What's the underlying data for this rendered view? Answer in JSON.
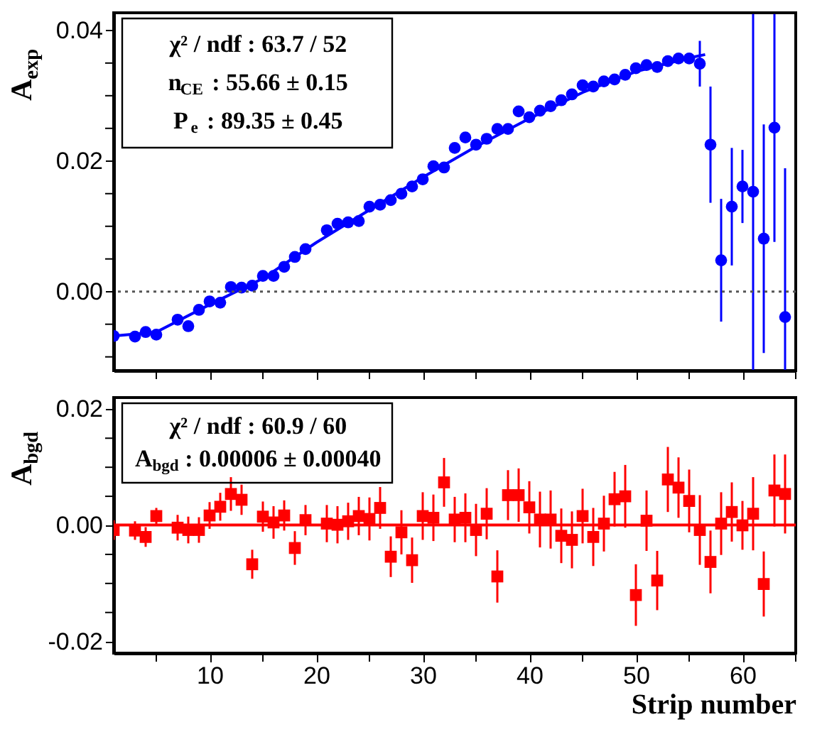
{
  "chart_data": [
    {
      "type": "scatter",
      "ylabel": "A$_{exp}$",
      "grid": false,
      "tick_labels": "y",
      "x": [
        1,
        3,
        4,
        5,
        7,
        8,
        9,
        10,
        11,
        12,
        13,
        14,
        15,
        16,
        17,
        18,
        19,
        21,
        22,
        23,
        24,
        25,
        26,
        27,
        28,
        29,
        30,
        31,
        32,
        33,
        34,
        35,
        36,
        37,
        38,
        39,
        40,
        41,
        42,
        43,
        44,
        45,
        46,
        47,
        48,
        49,
        50,
        51,
        52,
        53,
        54,
        55,
        56,
        57,
        58,
        59,
        60,
        61,
        62,
        63,
        64
      ],
      "series": [
        {
          "type": "scatter",
          "marker": "circle",
          "color": "#0000ff",
          "values": [
            -0.0068,
            -0.0069,
            -0.0062,
            -0.0066,
            -0.0043,
            -0.0053,
            -0.0028,
            -0.0015,
            -0.0017,
            0.0007,
            0.0006,
            0.0009,
            0.0024,
            0.0024,
            0.0038,
            0.0053,
            0.0065,
            0.0094,
            0.0104,
            0.0106,
            0.0108,
            0.013,
            0.0133,
            0.014,
            0.015,
            0.0161,
            0.0172,
            0.0192,
            0.019,
            0.022,
            0.0236,
            0.0225,
            0.0234,
            0.0249,
            0.0249,
            0.0276,
            0.0267,
            0.0277,
            0.0284,
            0.0293,
            0.0302,
            0.0316,
            0.0314,
            0.0322,
            0.0325,
            0.0332,
            0.0342,
            0.0347,
            0.0344,
            0.0353,
            0.0357,
            0.0357,
            0.0349,
            0.0225,
            0.0048,
            0.013,
            0.0161,
            0.0153,
            0.0081,
            0.0251,
            -0.0039
          ],
          "errors": [
            0.0005,
            0.0005,
            0.0005,
            0.0005,
            0.0005,
            0.0005,
            0.0005,
            0.0005,
            0.0005,
            0.0005,
            0.0005,
            0.0005,
            0.0005,
            0.0005,
            0.0005,
            0.0005,
            0.0005,
            0.0005,
            0.0005,
            0.0005,
            0.0005,
            0.0005,
            0.0005,
            0.0005,
            0.0005,
            0.0005,
            0.0005,
            0.0005,
            0.0005,
            0.0005,
            0.0005,
            0.0005,
            0.0005,
            0.0005,
            0.0005,
            0.0005,
            0.0005,
            0.0005,
            0.0005,
            0.0005,
            0.0005,
            0.0005,
            0.0005,
            0.0005,
            0.0005,
            0.0005,
            0.0005,
            0.0005,
            0.0005,
            0.0005,
            0.0005,
            0.0005,
            0.0035,
            0.0089,
            0.0094,
            0.009,
            0.0056,
            [
              -0.012,
              0.0425
            ],
            0.0175,
            [
              0.0076,
              0.0425
            ],
            [
              -0.012,
              0.0189
            ]
          ]
        },
        {
          "type": "line",
          "marker": "none",
          "line_style": "solid",
          "color": "#0000ff",
          "x": [
            1,
            5,
            10,
            15,
            20,
            25,
            30,
            35,
            40,
            45,
            50,
            55,
            56.5
          ],
          "values": [
            -0.0068,
            -0.0062,
            -0.002,
            0.002,
            0.0075,
            0.0125,
            0.0175,
            0.0222,
            0.0265,
            0.0305,
            0.0337,
            0.0358,
            0.0363
          ]
        }
      ],
      "xlim": [
        1,
        65
      ],
      "xticks": [
        {
          "value": 5,
          "label": null
        },
        10,
        {
          "value": 15,
          "label": null
        },
        20,
        {
          "value": 25,
          "label": null
        },
        30,
        {
          "value": 35,
          "label": null
        },
        40,
        {
          "value": 45,
          "label": null
        },
        50,
        {
          "value": 55,
          "label": null
        },
        60,
        {
          "value": 65,
          "label": null
        }
      ],
      "ylim": [
        -0.0121,
        0.0427
      ],
      "yticks": [
        {
          "value": -0.01,
          "label": null
        },
        {
          "value": -0.005,
          "label": null
        },
        {
          "value": 0,
          "label": "0.00"
        },
        {
          "value": 0.005,
          "label": null
        },
        {
          "value": 0.01,
          "label": null
        },
        {
          "value": 0.015,
          "label": null
        },
        {
          "value": 0.02,
          "label": "0.02"
        },
        {
          "value": 0.025,
          "label": null
        },
        {
          "value": 0.03,
          "label": null
        },
        {
          "value": 0.035,
          "label": null
        },
        {
          "value": 0.04,
          "label": "0.04"
        }
      ],
      "ref_lines": [
        {
          "axis": "y",
          "value": 0,
          "color": "#555555",
          "line_style": "dotted"
        }
      ],
      "annotations": [
        "χ² / ndf : 63.7 / 52",
        "n$_{CE}$ : 55.66 ± 0.15",
        "P$_{e}$ : 89.35 ± 0.45"
      ]
    },
    {
      "type": "scatter",
      "ylabel": "A$_{bgd}$",
      "xlabel": "Strip number",
      "grid": false,
      "x": [
        1,
        3,
        4,
        5,
        7,
        8,
        9,
        10,
        11,
        12,
        13,
        14,
        15,
        16,
        17,
        18,
        19,
        21,
        22,
        23,
        24,
        25,
        26,
        27,
        28,
        29,
        30,
        31,
        32,
        33,
        34,
        35,
        36,
        37,
        38,
        39,
        40,
        41,
        42,
        43,
        44,
        45,
        46,
        47,
        48,
        49,
        50,
        51,
        52,
        53,
        54,
        55,
        56,
        57,
        58,
        59,
        60,
        61,
        62,
        63,
        64
      ],
      "series": [
        {
          "type": "scatter",
          "marker": "square",
          "color": "#ff0000",
          "values": [
            -0.0008,
            -0.0009,
            -0.002,
            0.0016,
            -0.0004,
            -0.0008,
            -0.0008,
            0.0017,
            0.0032,
            0.0054,
            0.0044,
            -0.0067,
            0.0015,
            0.0005,
            0.0017,
            -0.0039,
            0.0009,
            0.0003,
            0.0001,
            0.0007,
            0.0016,
            0.0011,
            0.003,
            -0.0054,
            -0.0012,
            -0.006,
            0.0016,
            0.0013,
            0.0074,
            0.001,
            0.0013,
            -0.0008,
            0.002,
            -0.0088,
            0.0052,
            0.0052,
            0.0031,
            0.001,
            0.001,
            -0.0018,
            -0.0025,
            0.0016,
            -0.002,
            0.0003,
            0.0045,
            0.005,
            -0.012,
            0.0008,
            -0.0095,
            0.0079,
            0.0065,
            0.0042,
            -0.0008,
            -0.0063,
            0.0003,
            0.0023,
            0.0,
            0.002,
            -0.0101,
            0.006,
            0.0054
          ],
          "errors": [
            0.0017,
            0.0016,
            0.0017,
            0.0014,
            0.0022,
            0.0023,
            0.0022,
            0.0023,
            0.0024,
            0.0029,
            0.0026,
            0.0025,
            0.0026,
            0.0028,
            0.0026,
            0.0029,
            0.0026,
            0.0032,
            0.0032,
            0.0032,
            0.0033,
            0.0037,
            0.0036,
            0.0035,
            0.0038,
            0.0039,
            0.0041,
            0.004,
            0.0042,
            0.0039,
            0.0042,
            0.0045,
            0.0044,
            0.0045,
            0.0043,
            0.0046,
            0.0045,
            0.0048,
            0.005,
            0.0047,
            0.0049,
            0.0047,
            0.005,
            0.0048,
            0.0047,
            0.0054,
            0.0053,
            0.0052,
            0.0051,
            0.0056,
            0.0052,
            0.0054,
            0.006,
            0.0054,
            0.0054,
            0.0051,
            0.0042,
            0.0063,
            0.0056,
            0.0062,
            0.0068
          ]
        },
        {
          "type": "line",
          "marker": "none",
          "line_style": "solid",
          "color": "#ff0000",
          "x": [
            1,
            65
          ],
          "values": [
            6e-05,
            6e-05
          ]
        }
      ],
      "xlim": [
        1,
        65
      ],
      "xticks": [
        {
          "value": 5,
          "label": null
        },
        10,
        {
          "value": 15,
          "label": null
        },
        20,
        {
          "value": 25,
          "label": null
        },
        30,
        {
          "value": 35,
          "label": null
        },
        40,
        {
          "value": 45,
          "label": null
        },
        50,
        {
          "value": 55,
          "label": null
        },
        60,
        {
          "value": 65,
          "label": null
        }
      ],
      "ylim": [
        -0.022,
        0.022
      ],
      "yticks": [
        {
          "value": -0.02,
          "label": "-0.02"
        },
        {
          "value": -0.015,
          "label": null
        },
        {
          "value": -0.01,
          "label": null
        },
        {
          "value": -0.005,
          "label": null
        },
        {
          "value": 0,
          "label": "0.00"
        },
        {
          "value": 0.005,
          "label": null
        },
        {
          "value": 0.01,
          "label": null
        },
        {
          "value": 0.015,
          "label": null
        },
        {
          "value": 0.02,
          "label": "0.02"
        }
      ],
      "annotations": [
        "χ² / ndf : 60.9 / 60",
        "A$_{bgd}$ : 0.00006 ± 0.00040"
      ]
    }
  ]
}
